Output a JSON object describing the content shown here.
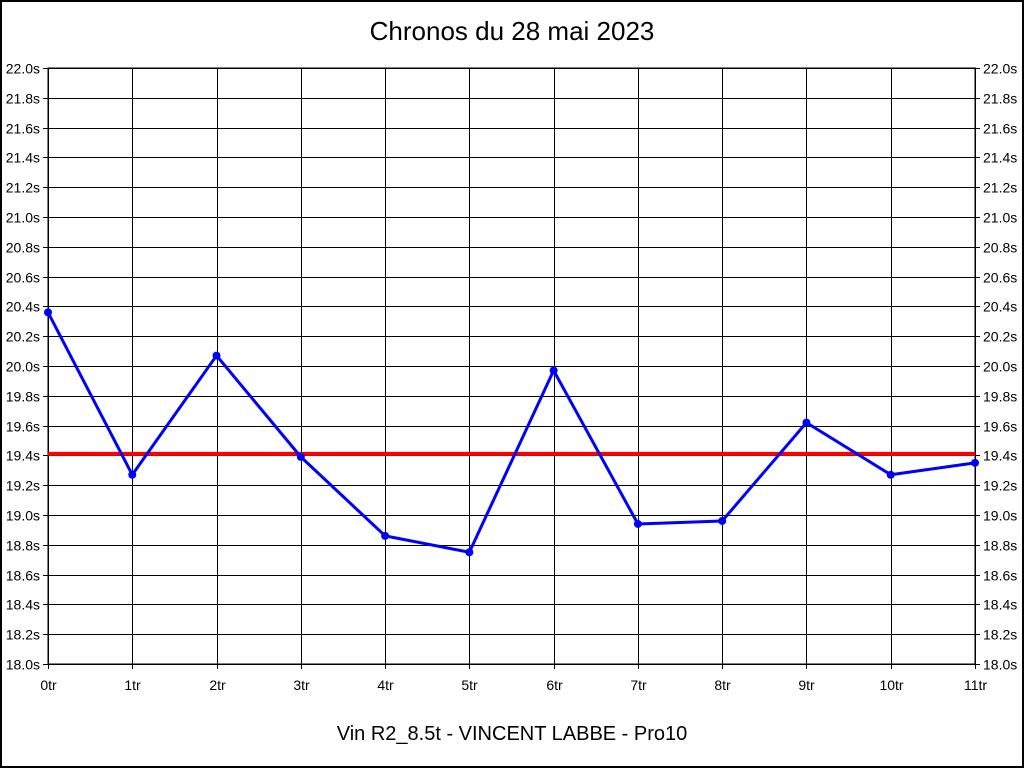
{
  "window": {
    "background": "#FFFFFF",
    "frame_border_color": "#000000"
  },
  "chart_data": {
    "type": "line",
    "title": "Chronos du 28 mai 2023",
    "subtitle": "Vin R2_8.5t - VINCENT LABBE - Pro10",
    "xlabel": "",
    "ylabel": "",
    "categories": [
      "0tr",
      "1tr",
      "2tr",
      "3tr",
      "4tr",
      "5tr",
      "6tr",
      "7tr",
      "8tr",
      "9tr",
      "10tr",
      "11tr"
    ],
    "series": [
      {
        "name": "lap-times",
        "color": "#0000FF",
        "values": [
          20.36,
          19.27,
          20.07,
          19.39,
          18.86,
          18.75,
          19.97,
          18.94,
          18.96,
          19.62,
          19.27,
          19.35
        ]
      }
    ],
    "reference_line": {
      "value": 19.41,
      "color": "#FF0000"
    },
    "ylim": [
      18.0,
      22.0
    ],
    "ytick_step": 0.2,
    "ytick_values": [
      22.0,
      21.8,
      21.6,
      21.4,
      21.2,
      21.0,
      20.8,
      20.6,
      20.4,
      20.2,
      20.0,
      19.8,
      19.6,
      19.4,
      19.2,
      19.0,
      18.8,
      18.6,
      18.4,
      18.2,
      18.0
    ],
    "ytick_labels": [
      "22.0s",
      "21.8s",
      "21.6s",
      "21.4s",
      "21.2s",
      "21.0s",
      "20.8s",
      "20.6s",
      "20.4s",
      "20.2s",
      "20.0s",
      "19.8s",
      "19.6s",
      "19.4s",
      "19.2s",
      "19.0s",
      "18.8s",
      "18.6s",
      "18.4s",
      "18.2s",
      "18.0s"
    ],
    "y_axis_sides": "both",
    "grid": true,
    "grid_color": "#000000",
    "legend": "none",
    "text_color": "#000000"
  }
}
